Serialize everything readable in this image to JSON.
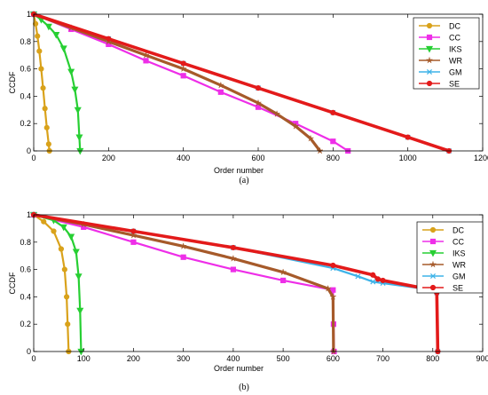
{
  "chart_data": [
    {
      "type": "line",
      "caption": "(a)",
      "xlabel": "Order number",
      "ylabel": "CCDF",
      "xlim": [
        0,
        1200
      ],
      "ylim": [
        0,
        1
      ],
      "xticks": [
        "0",
        "200",
        "400",
        "600",
        "800",
        "1000",
        "1200"
      ],
      "yticks": [
        "0",
        "0.2",
        "0.4",
        "0.6",
        "0.8",
        "1"
      ],
      "grid": false,
      "legend_position": "top-right",
      "series": [
        {
          "name": "DC",
          "color": "#d9a21b",
          "marker": "circle",
          "x": [
            0,
            5,
            10,
            15,
            20,
            25,
            30,
            35,
            40,
            42
          ],
          "y": [
            1.0,
            0.93,
            0.84,
            0.73,
            0.6,
            0.46,
            0.31,
            0.17,
            0.05,
            0.0
          ]
        },
        {
          "name": "CC",
          "color": "#ee2ee8",
          "marker": "square",
          "x": [
            0,
            100,
            200,
            300,
            400,
            500,
            600,
            700,
            800,
            840
          ],
          "y": [
            1.0,
            0.89,
            0.78,
            0.66,
            0.55,
            0.43,
            0.32,
            0.2,
            0.07,
            0.0
          ]
        },
        {
          "name": "IKS",
          "color": "#27cf33",
          "marker": "triangle-down",
          "x": [
            0,
            20,
            40,
            60,
            80,
            100,
            110,
            118,
            122,
            124
          ],
          "y": [
            1.0,
            0.96,
            0.91,
            0.85,
            0.75,
            0.58,
            0.45,
            0.3,
            0.1,
            0.0
          ]
        },
        {
          "name": "WR",
          "color": "#a65a2a",
          "marker": "star",
          "x": [
            0,
            100,
            200,
            300,
            400,
            500,
            600,
            650,
            700,
            740,
            765
          ],
          "y": [
            1.0,
            0.9,
            0.8,
            0.7,
            0.6,
            0.48,
            0.35,
            0.27,
            0.18,
            0.09,
            0.0
          ]
        },
        {
          "name": "GM",
          "color": "#3eb3e8",
          "marker": "x",
          "x": [
            0,
            200,
            400,
            600,
            800,
            1000,
            1110
          ],
          "y": [
            1.0,
            0.82,
            0.64,
            0.46,
            0.28,
            0.1,
            0.0
          ]
        },
        {
          "name": "SE",
          "color": "#e31a1a",
          "marker": "circle",
          "x": [
            0,
            200,
            400,
            600,
            800,
            1000,
            1110
          ],
          "y": [
            1.0,
            0.82,
            0.64,
            0.46,
            0.28,
            0.1,
            0.0
          ]
        }
      ]
    },
    {
      "type": "line",
      "caption": "(b)",
      "xlabel": "Order number",
      "ylabel": "CCDF",
      "xlim": [
        0,
        900
      ],
      "ylim": [
        0,
        1
      ],
      "xticks": [
        "0",
        "100",
        "200",
        "300",
        "400",
        "500",
        "600",
        "700",
        "800",
        "900"
      ],
      "yticks": [
        "0",
        "0.2",
        "0.4",
        "0.6",
        "0.8",
        "1"
      ],
      "grid": false,
      "legend_position": "top-right",
      "series": [
        {
          "name": "DC",
          "color": "#d9a21b",
          "marker": "circle",
          "x": [
            0,
            20,
            40,
            55,
            62,
            66,
            68,
            70
          ],
          "y": [
            1.0,
            0.95,
            0.88,
            0.75,
            0.6,
            0.4,
            0.2,
            0.0
          ]
        },
        {
          "name": "CC",
          "color": "#ee2ee8",
          "marker": "square",
          "x": [
            0,
            100,
            200,
            300,
            400,
            500,
            600,
            601,
            602
          ],
          "y": [
            1.0,
            0.91,
            0.8,
            0.69,
            0.6,
            0.52,
            0.45,
            0.2,
            0.0
          ]
        },
        {
          "name": "IKS",
          "color": "#27cf33",
          "marker": "triangle-down",
          "x": [
            0,
            40,
            60,
            75,
            85,
            90,
            93,
            95
          ],
          "y": [
            1.0,
            0.96,
            0.91,
            0.84,
            0.73,
            0.55,
            0.3,
            0.0
          ]
        },
        {
          "name": "WR",
          "color": "#a65a2a",
          "marker": "star",
          "x": [
            0,
            100,
            200,
            300,
            400,
            500,
            590,
            600,
            601
          ],
          "y": [
            1.0,
            0.93,
            0.85,
            0.77,
            0.68,
            0.58,
            0.46,
            0.4,
            0.0
          ]
        },
        {
          "name": "GM",
          "color": "#3eb3e8",
          "marker": "x",
          "x": [
            0,
            200,
            400,
            600,
            650,
            680,
            700,
            800,
            808,
            810
          ],
          "y": [
            1.0,
            0.88,
            0.76,
            0.61,
            0.55,
            0.51,
            0.5,
            0.45,
            0.43,
            0.0
          ]
        },
        {
          "name": "SE",
          "color": "#e31a1a",
          "marker": "circle",
          "x": [
            0,
            200,
            400,
            600,
            680,
            690,
            700,
            800,
            808,
            810
          ],
          "y": [
            1.0,
            0.88,
            0.76,
            0.63,
            0.56,
            0.53,
            0.52,
            0.45,
            0.43,
            0.0
          ]
        }
      ]
    }
  ]
}
